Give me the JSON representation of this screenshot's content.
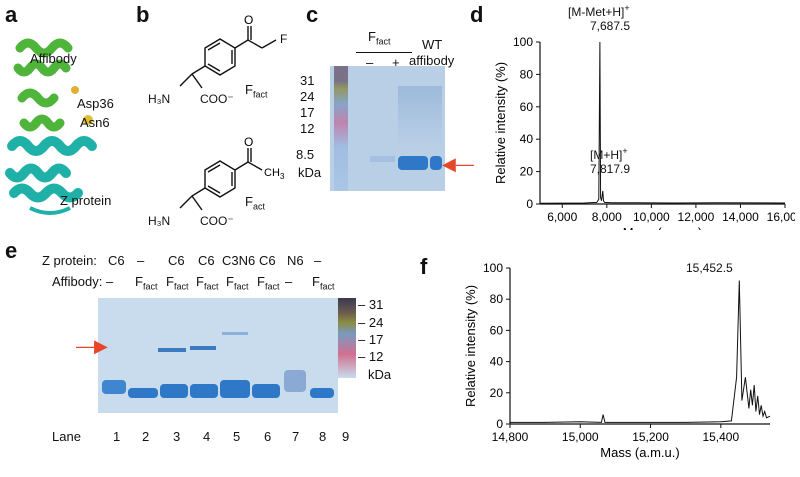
{
  "colors": {
    "gel_bg": "#b9cfe6",
    "band": "#2f78c8",
    "arrow": "#e8462a",
    "affibody_helix": "#4fb43a",
    "z_helix": "#1fb0a8"
  },
  "panels": {
    "a": {
      "letter": "a",
      "labels": {
        "affibody": "Affibody",
        "asp36": "Asp36",
        "asn6": "Asn6",
        "zprotein": "Z protein"
      }
    },
    "b": {
      "letter": "b",
      "compound1": "F",
      "compound1_sub": "fact",
      "compound2": "F",
      "compound2_sub": "act",
      "h3n": "H₃N",
      "coo": "COO⁻",
      "fluoro": "F"
    },
    "c": {
      "letter": "c",
      "header": "F",
      "header_sub": "fact",
      "minus": "–",
      "plus": "+",
      "wt1": "WT",
      "wt2": "affibody",
      "markers": [
        "31",
        "24",
        "17",
        "12",
        "8.5"
      ],
      "unit": "kDa"
    },
    "d": {
      "letter": "d",
      "peak1_label": "[M-Met+H]",
      "peak1_sup": "+",
      "peak1_value": "7,687.5",
      "peak2_label": "[M+H]",
      "peak2_sup": "+",
      "peak2_value": "7,817.9",
      "xlabel": "Mass (a.m.u.)",
      "ylabel": "Relative intensity (%)"
    },
    "e": {
      "letter": "e",
      "row1_label": "Z protein:",
      "row2_label": "Affibody:",
      "lane_label": "Lane",
      "z_protein": [
        "C6",
        "–",
        "C6",
        "C6",
        "C3N6",
        "C6",
        "N6",
        "–"
      ],
      "affibody": [
        "–",
        "F",
        "F",
        "F",
        "F",
        "F",
        "–",
        "F"
      ],
      "affibody_sub": "fact",
      "lanes": [
        "1",
        "2",
        "3",
        "4",
        "5",
        "6",
        "7",
        "8",
        "9"
      ],
      "markers": [
        "31",
        "24",
        "17",
        "12"
      ],
      "unit": "kDa"
    },
    "f": {
      "letter": "f",
      "peak_value": "15,452.5",
      "xlabel": "Mass (a.m.u.)",
      "ylabel": "Relative intensity (%)"
    }
  },
  "chart_data": [
    {
      "type": "line",
      "panel": "d",
      "xlabel": "Mass (a.m.u.)",
      "ylabel": "Relative intensity (%)",
      "xlim": [
        5000,
        16000
      ],
      "ylim": [
        0,
        100
      ],
      "xticks": [
        "6,000",
        "8,000",
        "10,000",
        "12,000",
        "14,000",
        "16,000"
      ],
      "xtick_values": [
        6000,
        8000,
        10000,
        12000,
        14000,
        16000
      ],
      "yticks": [
        "0",
        "20",
        "40",
        "60",
        "80",
        "100"
      ],
      "ytick_values": [
        0,
        20,
        40,
        60,
        80,
        100
      ],
      "x": [
        5000,
        7000,
        7550,
        7640,
        7687.5,
        7720,
        7760,
        7817.9,
        7850,
        7900,
        8200,
        9000,
        11000,
        13000,
        15000,
        16000
      ],
      "y": [
        0.5,
        0.6,
        1,
        3,
        100,
        4,
        2,
        8,
        2,
        1,
        0.8,
        0.8,
        0.6,
        0.8,
        0.7,
        0.6
      ]
    },
    {
      "type": "line",
      "panel": "f",
      "xlabel": "Mass (a.m.u.)",
      "ylabel": "Relative intensity (%)",
      "xlim": [
        14800,
        15540
      ],
      "ylim": [
        0,
        100
      ],
      "xticks": [
        "14,800",
        "15,000",
        "15,200",
        "15,400"
      ],
      "xtick_values": [
        14800,
        15000,
        15200,
        15400
      ],
      "yticks": [
        "0",
        "20",
        "40",
        "60",
        "80",
        "100"
      ],
      "ytick_values": [
        0,
        20,
        40,
        60,
        80,
        100
      ],
      "x": [
        14800,
        14900,
        15000,
        15060,
        15065,
        15070,
        15080,
        15200,
        15300,
        15400,
        15430,
        15445,
        15452.5,
        15460,
        15470,
        15480,
        15485,
        15490,
        15495,
        15500,
        15505,
        15510,
        15515,
        15520,
        15525,
        15530,
        15540
      ],
      "y": [
        1,
        1,
        1.5,
        1,
        6,
        1,
        1,
        1,
        1,
        1.5,
        2,
        30,
        92,
        15,
        30,
        10,
        22,
        12,
        25,
        8,
        18,
        6,
        12,
        5,
        8,
        4,
        5
      ]
    }
  ]
}
